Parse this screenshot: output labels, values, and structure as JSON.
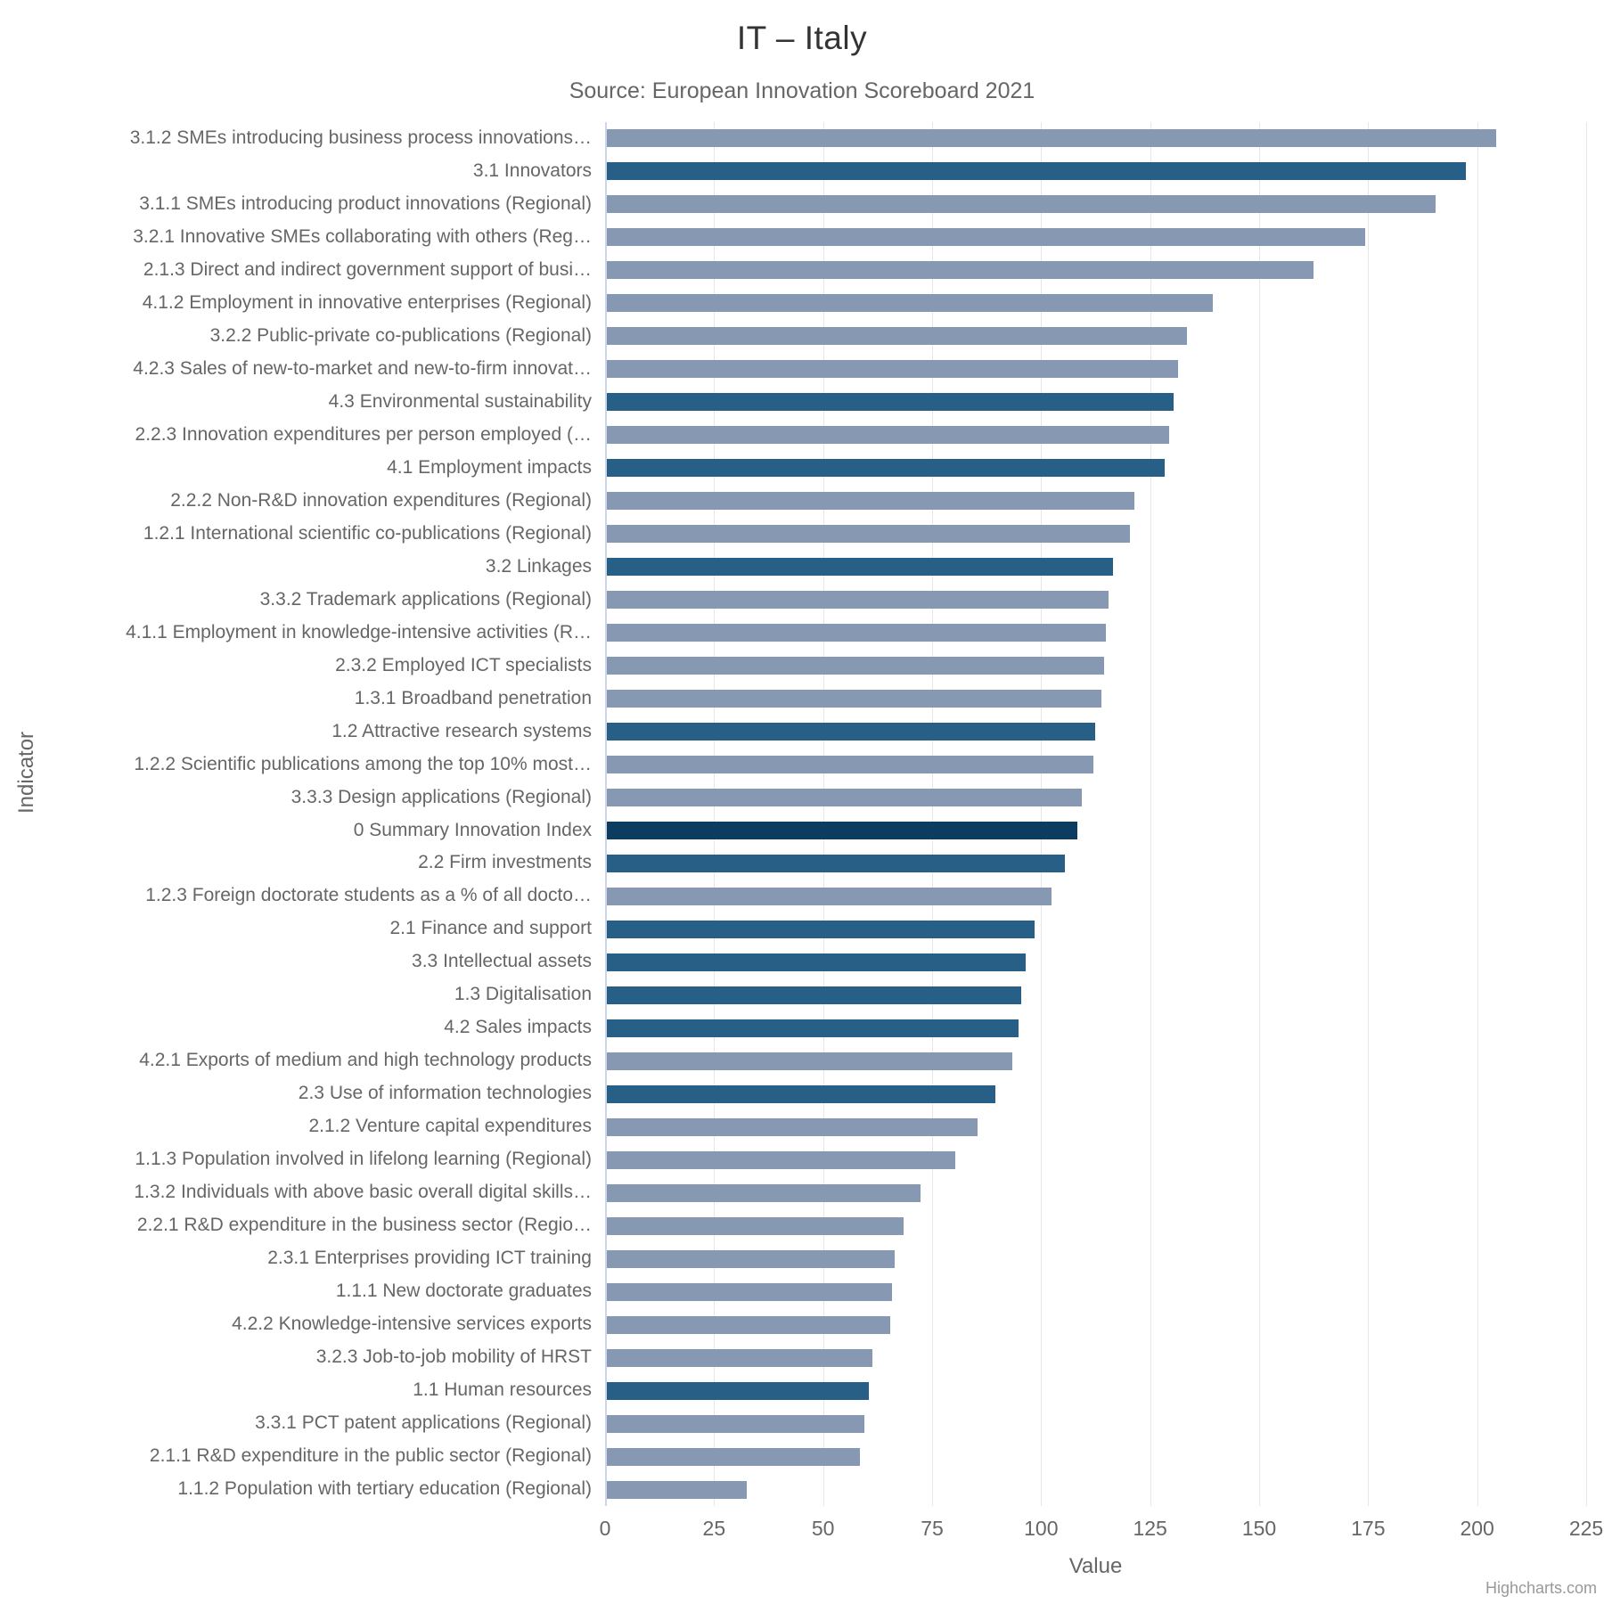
{
  "title": "IT – Italy",
  "subtitle": "Source: European Innovation Scoreboard 2021",
  "credit": "Highcharts.com",
  "colors": {
    "sub": "#8798b3",
    "dimension": "#275f87",
    "summary": "#0c3c5f",
    "gridline": "#e6e6e6",
    "axis_line": "#ccd6eb"
  },
  "chart_data": {
    "type": "bar",
    "title": "IT – Italy",
    "subtitle": "Source: European Innovation Scoreboard 2021",
    "xlabel": "Value",
    "ylabel": "Indicator",
    "xlim": [
      0,
      225
    ],
    "x_ticks": [
      0,
      25,
      50,
      75,
      100,
      125,
      150,
      175,
      200,
      225
    ],
    "grid": true,
    "legend": false,
    "orientation": "horizontal",
    "categories": [
      "3.1.2 SMEs introducing business process innovations…",
      "3.1 Innovators",
      "3.1.1 SMEs introducing product innovations (Regional)",
      "3.2.1 Innovative SMEs collaborating with others (Reg…",
      "2.1.3 Direct and indirect government support of busi…",
      "4.1.2 Employment in innovative enterprises (Regional)",
      "3.2.2 Public-private co-publications (Regional)",
      "4.2.3 Sales of new-to-market and new-to-firm innovat…",
      "4.3 Environmental sustainability",
      "2.2.3 Innovation expenditures per person employed (…",
      "4.1 Employment impacts",
      "2.2.2 Non-R&D innovation expenditures (Regional)",
      "1.2.1 International scientific co-publications (Regional)",
      "3.2 Linkages",
      "3.3.2 Trademark applications (Regional)",
      "4.1.1 Employment in knowledge-intensive activities (R…",
      "2.3.2 Employed ICT specialists",
      "1.3.1 Broadband penetration",
      "1.2 Attractive research systems",
      "1.2.2 Scientific publications among the top 10% most…",
      "3.3.3 Design applications (Regional)",
      "0 Summary Innovation Index",
      "2.2 Firm investments",
      "1.2.3 Foreign doctorate students as a % of all docto…",
      "2.1 Finance and support",
      "3.3 Intellectual assets",
      "1.3 Digitalisation",
      "4.2 Sales impacts",
      "4.2.1 Exports of medium and high technology products",
      "2.3 Use of information technologies",
      "2.1.2 Venture capital expenditures",
      "1.1.3 Population involved in lifelong learning (Regional)",
      "1.3.2 Individuals with above basic overall digital skills…",
      "2.2.1 R&D expenditure in the business sector (Regio…",
      "2.3.1 Enterprises providing ICT training",
      "1.1.1 New doctorate graduates",
      "4.2.2 Knowledge-intensive services exports",
      "3.2.3 Job-to-job mobility of HRST",
      "1.1 Human resources",
      "3.3.1 PCT patent applications (Regional)",
      "2.1.1 R&D expenditure in the public sector (Regional)",
      "1.1.2 Population with tertiary education (Regional)"
    ],
    "values": [
      204,
      197,
      190,
      174,
      162,
      139,
      133,
      131,
      130,
      129,
      128,
      121,
      120,
      116,
      115,
      114.5,
      114,
      113.5,
      112,
      111.5,
      109,
      108,
      105,
      102,
      98,
      96,
      95,
      94.5,
      93,
      89,
      85,
      80,
      72,
      68,
      66,
      65.3,
      65,
      61,
      60,
      59,
      58,
      32
    ],
    "tiers": [
      "sub",
      "dimension",
      "sub",
      "sub",
      "sub",
      "sub",
      "sub",
      "sub",
      "dimension",
      "sub",
      "dimension",
      "sub",
      "sub",
      "dimension",
      "sub",
      "sub",
      "sub",
      "sub",
      "dimension",
      "sub",
      "sub",
      "summary",
      "dimension",
      "sub",
      "dimension",
      "dimension",
      "dimension",
      "dimension",
      "sub",
      "dimension",
      "sub",
      "sub",
      "sub",
      "sub",
      "sub",
      "sub",
      "sub",
      "sub",
      "dimension",
      "sub",
      "sub",
      "sub"
    ]
  }
}
